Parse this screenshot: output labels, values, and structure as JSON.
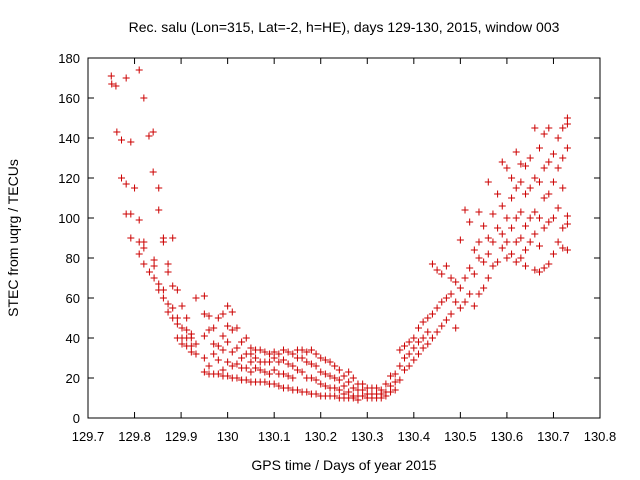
{
  "chart_data": {
    "type": "scatter",
    "title": "Rec. salu (Lon=315, Lat=-2, h=HE), days 129-130, 2015, window 003",
    "xlabel": "GPS time / Days of year 2015",
    "ylabel": "STEC from uqrg / TECUs",
    "xlim": [
      129.7,
      130.8
    ],
    "ylim": [
      0,
      180
    ],
    "grid": false,
    "legend": "none",
    "marker": "plus",
    "color": "#cc0000",
    "xticks": [
      {
        "value": 129.7,
        "label": "129.7"
      },
      {
        "value": 129.8,
        "label": "129.8"
      },
      {
        "value": 129.9,
        "label": "129.9"
      },
      {
        "value": 130.0,
        "label": "130"
      },
      {
        "value": 130.1,
        "label": "130.1"
      },
      {
        "value": 130.2,
        "label": "130.2"
      },
      {
        "value": 130.3,
        "label": "130.3"
      },
      {
        "value": 130.4,
        "label": "130.4"
      },
      {
        "value": 130.5,
        "label": "130.5"
      },
      {
        "value": 130.6,
        "label": "130.6"
      },
      {
        "value": 130.7,
        "label": "130.7"
      },
      {
        "value": 130.8,
        "label": "130.8"
      }
    ],
    "yticks": [
      {
        "value": 0,
        "label": "0"
      },
      {
        "value": 20,
        "label": "20"
      },
      {
        "value": 40,
        "label": "40"
      },
      {
        "value": 60,
        "label": "60"
      },
      {
        "value": 80,
        "label": "80"
      },
      {
        "value": 100,
        "label": "100"
      },
      {
        "value": 120,
        "label": "120"
      },
      {
        "value": 140,
        "label": "140"
      },
      {
        "value": 160,
        "label": "160"
      },
      {
        "value": 180,
        "label": "180"
      }
    ],
    "points": [
      [
        129.75,
        171
      ],
      [
        129.751,
        167
      ],
      [
        129.76,
        166
      ],
      [
        129.762,
        143
      ],
      [
        129.772,
        139
      ],
      [
        129.772,
        120
      ],
      [
        129.782,
        170
      ],
      [
        129.782,
        117
      ],
      [
        129.782,
        102
      ],
      [
        129.792,
        138
      ],
      [
        129.792,
        102
      ],
      [
        129.792,
        90
      ],
      [
        129.81,
        174
      ],
      [
        129.8,
        115
      ],
      [
        129.81,
        99
      ],
      [
        129.81,
        88
      ],
      [
        129.81,
        82
      ],
      [
        129.82,
        160
      ],
      [
        129.82,
        88
      ],
      [
        129.82,
        85
      ],
      [
        129.82,
        77
      ],
      [
        129.831,
        141
      ],
      [
        129.832,
        73
      ],
      [
        129.84,
        143
      ],
      [
        129.84,
        123
      ],
      [
        129.842,
        79
      ],
      [
        129.842,
        76
      ],
      [
        129.842,
        70
      ],
      [
        129.852,
        115
      ],
      [
        129.852,
        104
      ],
      [
        129.852,
        67
      ],
      [
        129.852,
        64
      ],
      [
        129.862,
        90
      ],
      [
        129.862,
        88
      ],
      [
        129.862,
        64
      ],
      [
        129.862,
        60
      ],
      [
        129.872,
        77
      ],
      [
        129.872,
        73
      ],
      [
        129.872,
        57
      ],
      [
        129.872,
        53
      ],
      [
        129.882,
        90
      ],
      [
        129.882,
        66
      ],
      [
        129.882,
        55
      ],
      [
        129.882,
        50
      ],
      [
        129.892,
        64
      ],
      [
        129.892,
        50
      ],
      [
        129.892,
        47
      ],
      [
        129.892,
        40
      ],
      [
        129.902,
        56
      ],
      [
        129.902,
        45
      ],
      [
        129.902,
        40
      ],
      [
        129.902,
        37
      ],
      [
        129.912,
        50
      ],
      [
        129.912,
        44
      ],
      [
        129.912,
        40
      ],
      [
        129.912,
        36
      ],
      [
        129.922,
        42
      ],
      [
        129.922,
        40
      ],
      [
        129.922,
        36
      ],
      [
        129.922,
        33
      ],
      [
        129.932,
        60
      ],
      [
        129.932,
        37
      ],
      [
        129.932,
        32
      ],
      [
        129.95,
        61
      ],
      [
        129.95,
        52
      ],
      [
        129.95,
        41
      ],
      [
        129.95,
        30
      ],
      [
        129.95,
        23
      ],
      [
        129.96,
        51
      ],
      [
        129.96,
        44
      ],
      [
        129.96,
        26
      ],
      [
        129.96,
        22
      ],
      [
        129.97,
        45
      ],
      [
        129.97,
        37
      ],
      [
        129.97,
        32
      ],
      [
        129.97,
        22
      ],
      [
        129.98,
        50
      ],
      [
        129.98,
        36
      ],
      [
        129.98,
        29
      ],
      [
        129.98,
        22
      ],
      [
        129.99,
        52
      ],
      [
        129.99,
        41
      ],
      [
        129.99,
        34
      ],
      [
        129.99,
        24
      ],
      [
        129.99,
        21
      ],
      [
        130.0,
        56
      ],
      [
        130.0,
        46
      ],
      [
        130.0,
        38
      ],
      [
        130.0,
        28
      ],
      [
        130.0,
        21
      ],
      [
        130.01,
        53
      ],
      [
        130.01,
        44
      ],
      [
        130.01,
        33
      ],
      [
        130.01,
        26
      ],
      [
        130.01,
        20
      ],
      [
        130.02,
        45
      ],
      [
        130.02,
        35
      ],
      [
        130.02,
        27
      ],
      [
        130.02,
        20
      ],
      [
        130.03,
        38
      ],
      [
        130.03,
        30
      ],
      [
        130.03,
        25
      ],
      [
        130.03,
        19
      ],
      [
        130.04,
        40
      ],
      [
        130.04,
        32
      ],
      [
        130.04,
        25
      ],
      [
        130.04,
        19
      ],
      [
        130.05,
        35
      ],
      [
        130.05,
        32
      ],
      [
        130.05,
        28
      ],
      [
        130.05,
        23
      ],
      [
        130.05,
        18
      ],
      [
        130.06,
        34
      ],
      [
        130.06,
        30
      ],
      [
        130.06,
        25
      ],
      [
        130.06,
        18
      ],
      [
        130.07,
        34
      ],
      [
        130.07,
        28
      ],
      [
        130.07,
        24
      ],
      [
        130.07,
        18
      ],
      [
        130.08,
        33
      ],
      [
        130.08,
        28
      ],
      [
        130.08,
        23
      ],
      [
        130.08,
        18
      ],
      [
        130.09,
        32
      ],
      [
        130.09,
        28
      ],
      [
        130.09,
        22
      ],
      [
        130.09,
        17
      ],
      [
        130.1,
        33
      ],
      [
        130.1,
        30
      ],
      [
        130.1,
        24
      ],
      [
        130.1,
        17
      ],
      [
        130.11,
        32
      ],
      [
        130.11,
        28
      ],
      [
        130.11,
        22
      ],
      [
        130.11,
        16
      ],
      [
        130.12,
        34
      ],
      [
        130.12,
        29
      ],
      [
        130.12,
        22
      ],
      [
        130.12,
        15
      ],
      [
        130.13,
        33
      ],
      [
        130.13,
        27
      ],
      [
        130.13,
        21
      ],
      [
        130.13,
        15
      ],
      [
        130.14,
        32
      ],
      [
        130.14,
        26
      ],
      [
        130.14,
        20
      ],
      [
        130.14,
        14
      ],
      [
        130.15,
        34
      ],
      [
        130.15,
        30
      ],
      [
        130.15,
        24
      ],
      [
        130.15,
        14
      ],
      [
        130.16,
        34
      ],
      [
        130.16,
        30
      ],
      [
        130.16,
        23
      ],
      [
        130.16,
        13
      ],
      [
        130.17,
        33
      ],
      [
        130.17,
        28
      ],
      [
        130.17,
        20
      ],
      [
        130.17,
        13
      ],
      [
        130.18,
        34
      ],
      [
        130.18,
        27
      ],
      [
        130.18,
        20
      ],
      [
        130.18,
        12
      ],
      [
        130.19,
        32
      ],
      [
        130.19,
        26
      ],
      [
        130.19,
        19
      ],
      [
        130.19,
        12
      ],
      [
        130.2,
        30
      ],
      [
        130.2,
        23
      ],
      [
        130.2,
        17
      ],
      [
        130.2,
        11
      ],
      [
        130.21,
        29
      ],
      [
        130.21,
        22
      ],
      [
        130.21,
        16
      ],
      [
        130.21,
        11
      ],
      [
        130.22,
        28
      ],
      [
        130.22,
        21
      ],
      [
        130.22,
        15
      ],
      [
        130.22,
        11
      ],
      [
        130.23,
        26
      ],
      [
        130.23,
        20
      ],
      [
        130.23,
        15
      ],
      [
        130.23,
        11
      ],
      [
        130.24,
        24
      ],
      [
        130.24,
        19
      ],
      [
        130.24,
        14
      ],
      [
        130.24,
        10
      ],
      [
        130.25,
        21
      ],
      [
        130.25,
        16
      ],
      [
        130.25,
        12
      ],
      [
        130.25,
        10
      ],
      [
        130.26,
        23
      ],
      [
        130.26,
        18
      ],
      [
        130.26,
        13
      ],
      [
        130.26,
        10
      ],
      [
        130.27,
        20
      ],
      [
        130.27,
        15
      ],
      [
        130.27,
        11
      ],
      [
        130.27,
        10
      ],
      [
        130.28,
        17
      ],
      [
        130.28,
        14
      ],
      [
        130.28,
        11
      ],
      [
        130.28,
        9
      ],
      [
        130.29,
        17
      ],
      [
        130.29,
        14
      ],
      [
        130.29,
        11
      ],
      [
        130.3,
        15
      ],
      [
        130.3,
        12
      ],
      [
        130.3,
        10
      ],
      [
        130.31,
        15
      ],
      [
        130.31,
        12
      ],
      [
        130.31,
        10
      ],
      [
        130.32,
        15
      ],
      [
        130.32,
        12
      ],
      [
        130.32,
        10
      ],
      [
        130.33,
        14
      ],
      [
        130.33,
        12
      ],
      [
        130.33,
        10
      ],
      [
        130.34,
        17
      ],
      [
        130.34,
        13
      ],
      [
        130.34,
        11
      ],
      [
        130.35,
        21
      ],
      [
        130.35,
        16
      ],
      [
        130.35,
        13
      ],
      [
        130.36,
        22
      ],
      [
        130.36,
        18
      ],
      [
        130.36,
        14
      ],
      [
        130.37,
        34
      ],
      [
        130.37,
        26
      ],
      [
        130.37,
        19
      ],
      [
        130.38,
        36
      ],
      [
        130.38,
        30
      ],
      [
        130.38,
        24
      ],
      [
        130.39,
        38
      ],
      [
        130.39,
        32
      ],
      [
        130.39,
        26
      ],
      [
        130.4,
        40
      ],
      [
        130.4,
        35
      ],
      [
        130.4,
        29
      ],
      [
        130.41,
        45
      ],
      [
        130.41,
        38
      ],
      [
        130.41,
        32
      ],
      [
        130.42,
        48
      ],
      [
        130.42,
        40
      ],
      [
        130.42,
        35
      ],
      [
        130.43,
        50
      ],
      [
        130.43,
        43
      ],
      [
        130.43,
        37
      ],
      [
        130.44,
        77
      ],
      [
        130.44,
        52
      ],
      [
        130.44,
        40
      ],
      [
        130.45,
        74
      ],
      [
        130.45,
        55
      ],
      [
        130.45,
        43
      ],
      [
        130.46,
        72
      ],
      [
        130.46,
        58
      ],
      [
        130.46,
        46
      ],
      [
        130.47,
        76
      ],
      [
        130.47,
        60
      ],
      [
        130.47,
        49
      ],
      [
        130.48,
        70
      ],
      [
        130.48,
        62
      ],
      [
        130.48,
        52
      ],
      [
        130.49,
        68
      ],
      [
        130.49,
        58
      ],
      [
        130.49,
        45
      ],
      [
        130.5,
        89
      ],
      [
        130.5,
        65
      ],
      [
        130.5,
        55
      ],
      [
        130.51,
        104
      ],
      [
        130.51,
        70
      ],
      [
        130.51,
        58
      ],
      [
        130.52,
        98
      ],
      [
        130.52,
        75
      ],
      [
        130.52,
        62
      ],
      [
        130.53,
        84
      ],
      [
        130.53,
        72
      ],
      [
        130.53,
        56
      ],
      [
        130.54,
        103
      ],
      [
        130.54,
        88
      ],
      [
        130.54,
        80
      ],
      [
        130.54,
        62
      ],
      [
        130.55,
        96
      ],
      [
        130.55,
        78
      ],
      [
        130.55,
        65
      ],
      [
        130.56,
        118
      ],
      [
        130.56,
        90
      ],
      [
        130.56,
        82
      ],
      [
        130.56,
        70
      ],
      [
        130.57,
        102
      ],
      [
        130.57,
        88
      ],
      [
        130.57,
        76
      ],
      [
        130.58,
        112
      ],
      [
        130.58,
        95
      ],
      [
        130.58,
        78
      ],
      [
        130.59,
        128
      ],
      [
        130.59,
        106
      ],
      [
        130.59,
        92
      ],
      [
        130.59,
        85
      ],
      [
        130.6,
        125
      ],
      [
        130.6,
        100
      ],
      [
        130.6,
        88
      ],
      [
        130.6,
        80
      ],
      [
        130.61,
        120
      ],
      [
        130.61,
        110
      ],
      [
        130.61,
        95
      ],
      [
        130.61,
        82
      ],
      [
        130.62,
        133
      ],
      [
        130.62,
        115
      ],
      [
        130.62,
        100
      ],
      [
        130.62,
        88
      ],
      [
        130.62,
        78
      ],
      [
        130.63,
        127
      ],
      [
        130.63,
        118
      ],
      [
        130.63,
        103
      ],
      [
        130.63,
        90
      ],
      [
        130.63,
        80
      ],
      [
        130.64,
        126
      ],
      [
        130.64,
        112
      ],
      [
        130.64,
        96
      ],
      [
        130.64,
        84
      ],
      [
        130.64,
        76
      ],
      [
        130.65,
        130
      ],
      [
        130.65,
        115
      ],
      [
        130.65,
        100
      ],
      [
        130.65,
        88
      ],
      [
        130.66,
        145
      ],
      [
        130.66,
        120
      ],
      [
        130.66,
        103
      ],
      [
        130.66,
        92
      ],
      [
        130.66,
        74
      ],
      [
        130.67,
        135
      ],
      [
        130.67,
        118
      ],
      [
        130.67,
        100
      ],
      [
        130.67,
        86
      ],
      [
        130.67,
        73
      ],
      [
        130.68,
        142
      ],
      [
        130.68,
        125
      ],
      [
        130.68,
        110
      ],
      [
        130.68,
        95
      ],
      [
        130.68,
        75
      ],
      [
        130.69,
        145
      ],
      [
        130.69,
        128
      ],
      [
        130.69,
        112
      ],
      [
        130.69,
        98
      ],
      [
        130.69,
        77
      ],
      [
        130.7,
        132
      ],
      [
        130.7,
        118
      ],
      [
        130.7,
        100
      ],
      [
        130.7,
        82
      ],
      [
        130.71,
        140
      ],
      [
        130.71,
        125
      ],
      [
        130.71,
        105
      ],
      [
        130.71,
        88
      ],
      [
        130.72,
        145
      ],
      [
        130.72,
        130
      ],
      [
        130.72,
        115
      ],
      [
        130.72,
        95
      ],
      [
        130.72,
        85
      ],
      [
        130.73,
        150
      ],
      [
        130.73,
        147
      ],
      [
        130.73,
        135
      ],
      [
        130.73,
        101
      ],
      [
        130.73,
        97
      ],
      [
        130.73,
        84
      ]
    ]
  }
}
